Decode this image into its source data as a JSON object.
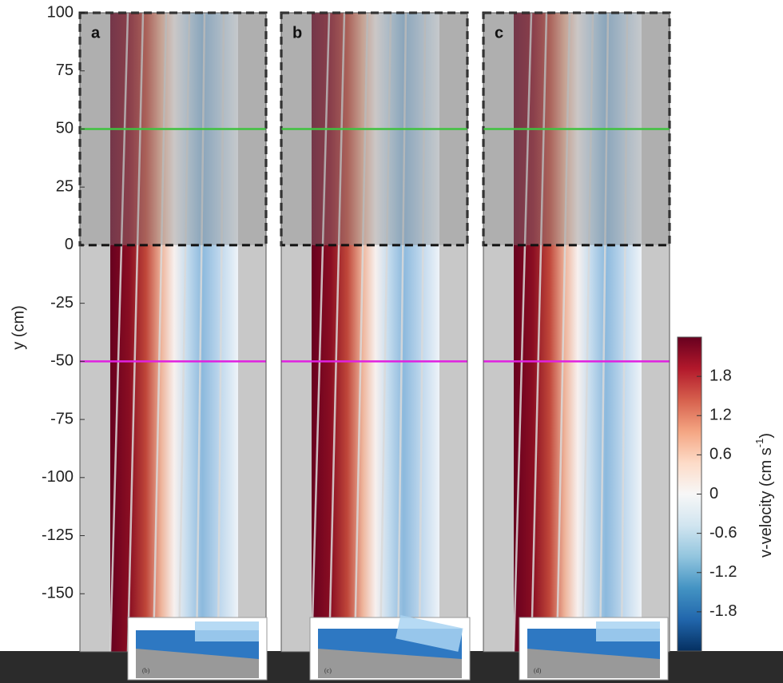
{
  "chart_data": {
    "type": "field",
    "y_label": "y (cm)",
    "ylim": [
      -175,
      100
    ],
    "yticks": [
      100,
      75,
      50,
      25,
      0,
      -25,
      -50,
      -75,
      -100,
      -125,
      -150
    ],
    "panels": [
      {
        "label": "a",
        "inset_label": "(b)"
      },
      {
        "label": "b",
        "inset_label": "(c)"
      },
      {
        "label": "c",
        "inset_label": "(d)"
      }
    ],
    "highlight_range": [
      0,
      100
    ],
    "reference_lines": [
      {
        "value": 50,
        "color": "#3fc23f"
      },
      {
        "value": -50,
        "color": "#e020e0"
      }
    ],
    "colorbar": {
      "label": "v-velocity (cm s",
      "label_superscript": "-1",
      "label_end": ")",
      "clim": [
        -2.4,
        2.4
      ],
      "ticks": [
        1.8,
        1.2,
        0.6,
        0,
        -0.6,
        -1.2,
        -1.8
      ],
      "colormap": [
        "#67001f",
        "#b2182b",
        "#d6604d",
        "#f4a582",
        "#fddbc7",
        "#f7f7f7",
        "#d1e5f0",
        "#92c5de",
        "#4393c3",
        "#2166ac",
        "#053061"
      ]
    }
  }
}
